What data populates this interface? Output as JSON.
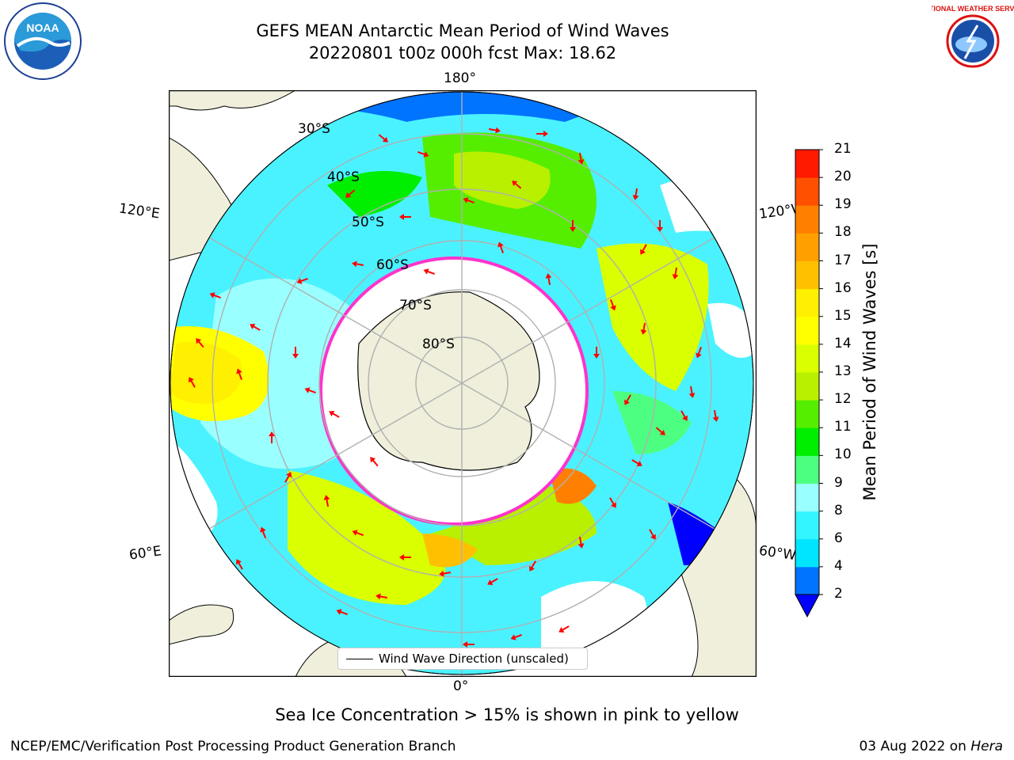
{
  "header": {
    "title_line1": "GEFS MEAN Antarctic Mean Period of Wind Waves",
    "title_line2": "20220801 t00z 000h fcst   Max: 18.62"
  },
  "logos": {
    "left": "noaa-logo",
    "left_text": "NOAA",
    "right": "national-weather-service-logo",
    "right_text": "NATIONAL WEATHER SERVICE"
  },
  "map": {
    "projection": "south-polar-stereographic",
    "longitude_labels": {
      "top": "180°",
      "bottom": "0°",
      "upper_left": "120°E",
      "upper_right": "120°W",
      "lower_left": "60°E",
      "lower_right": "60°W"
    },
    "latitude_labels": [
      "30°S",
      "40°S",
      "50°S",
      "60°S",
      "70°S",
      "80°S"
    ],
    "colors": {
      "ocean_no_data": "#ffffff",
      "land": "#efefdb",
      "sea_ice_edge": "#ff33cc",
      "arrows": "#ff0000"
    }
  },
  "legend": {
    "entry": "Wind Wave Direction (unscaled)"
  },
  "colorbar": {
    "label": "Mean Period of Wind Waves [s]",
    "ticks": [
      "2",
      "4",
      "6",
      "8",
      "9",
      "10",
      "11",
      "12",
      "13",
      "14",
      "15",
      "16",
      "17",
      "18",
      "19",
      "20",
      "21"
    ],
    "colors": [
      "#0073ff",
      "#00e5ff",
      "#33f5ff",
      "#99ffff",
      "#4dff80",
      "#00ee00",
      "#55ee00",
      "#b8f000",
      "#d9ff00",
      "#ffff00",
      "#ffef00",
      "#ffc000",
      "#ffa000",
      "#ff8000",
      "#ff5000",
      "#ff1a00"
    ],
    "under_color": "#0000ff"
  },
  "note": "Sea Ice Concentration > 15% is shown in pink to yellow",
  "footer": {
    "left": "NCEP/EMC/Verification Post Processing Product Generation Branch",
    "right_date": "03 Aug 2022 on ",
    "right_host": "Hera"
  }
}
